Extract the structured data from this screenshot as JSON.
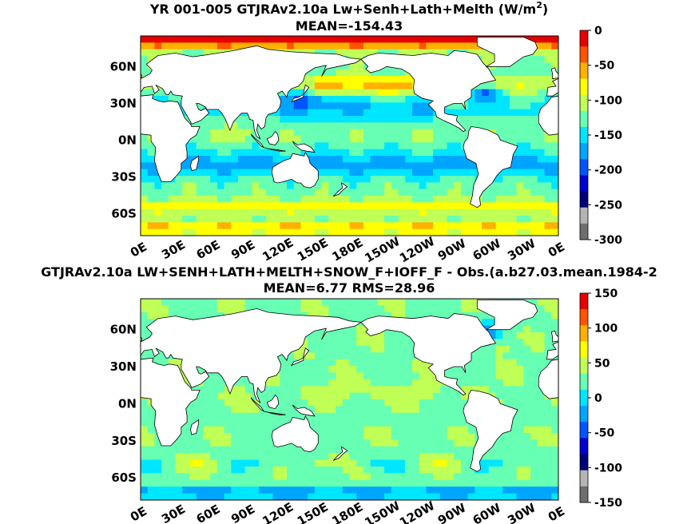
{
  "panels": [
    {
      "title_line1": "YR 001-005 GTJRAv2.10a Lw+Senh+Lath+Melth (W/m",
      "title_sup": "2",
      "title_close": ")",
      "title_line2": "MEAN=-154.43"
    },
    {
      "title_line1": "GTJRAv2.10a LW+SENH+LATH+MELTH+SNOW_F+IOFF_F - Obs.(a.b27.03.mean.1984-2",
      "title_line2": "MEAN=6.77 RMS=28.96"
    }
  ],
  "chart_data": [
    {
      "type": "heatmap",
      "title": "YR 001-005 GTJRAv2.10a Lw+Senh+Lath+Melth (W/m2)",
      "subtitle": "MEAN=-154.43",
      "x_ticks": [
        "0E",
        "30E",
        "60E",
        "90E",
        "120E",
        "150E",
        "180E",
        "150W",
        "120W",
        "90W",
        "60W",
        "30W",
        "0E"
      ],
      "y_ticks": [
        "60N",
        "30N",
        "0N",
        "30S",
        "60S"
      ],
      "colorbar": {
        "ticks": [
          "0",
          "-50",
          "-100",
          "-150",
          "-200",
          "-250",
          "-300"
        ],
        "range": [
          -300,
          0
        ]
      },
      "colormap": [
        "#6e6e6e",
        "#b4b4b4",
        "#00007a",
        "#0000d2",
        "#0055ff",
        "#00a5ff",
        "#00e6ff",
        "#66ffb3",
        "#c0ff55",
        "#ffff00",
        "#ffb000",
        "#ff5500",
        "#e60000"
      ]
    },
    {
      "type": "heatmap",
      "title": "GTJRAv2.10a LW+SENH+LATH+MELTH+SNOW_F+IOFF_F - Obs.(a.b27.03.mean.1984-2",
      "subtitle": "MEAN=6.77 RMS=28.96",
      "x_ticks": [
        "0E",
        "30E",
        "60E",
        "90E",
        "120E",
        "150E",
        "180E",
        "150W",
        "120W",
        "90W",
        "60W",
        "30W",
        "0E"
      ],
      "y_ticks": [
        "60N",
        "30N",
        "0N",
        "30S",
        "60S"
      ],
      "colorbar": {
        "ticks": [
          "150",
          "100",
          "50",
          "0",
          "-50",
          "-100",
          "-150"
        ],
        "range": [
          -150,
          150
        ]
      },
      "colormap": [
        "#6e6e6e",
        "#b4b4b4",
        "#00007a",
        "#0000d2",
        "#0055ff",
        "#00a5ff",
        "#00e6ff",
        "#66ffb3",
        "#c0ff55",
        "#ffff00",
        "#ffb000",
        "#ff5500",
        "#e60000"
      ]
    }
  ]
}
